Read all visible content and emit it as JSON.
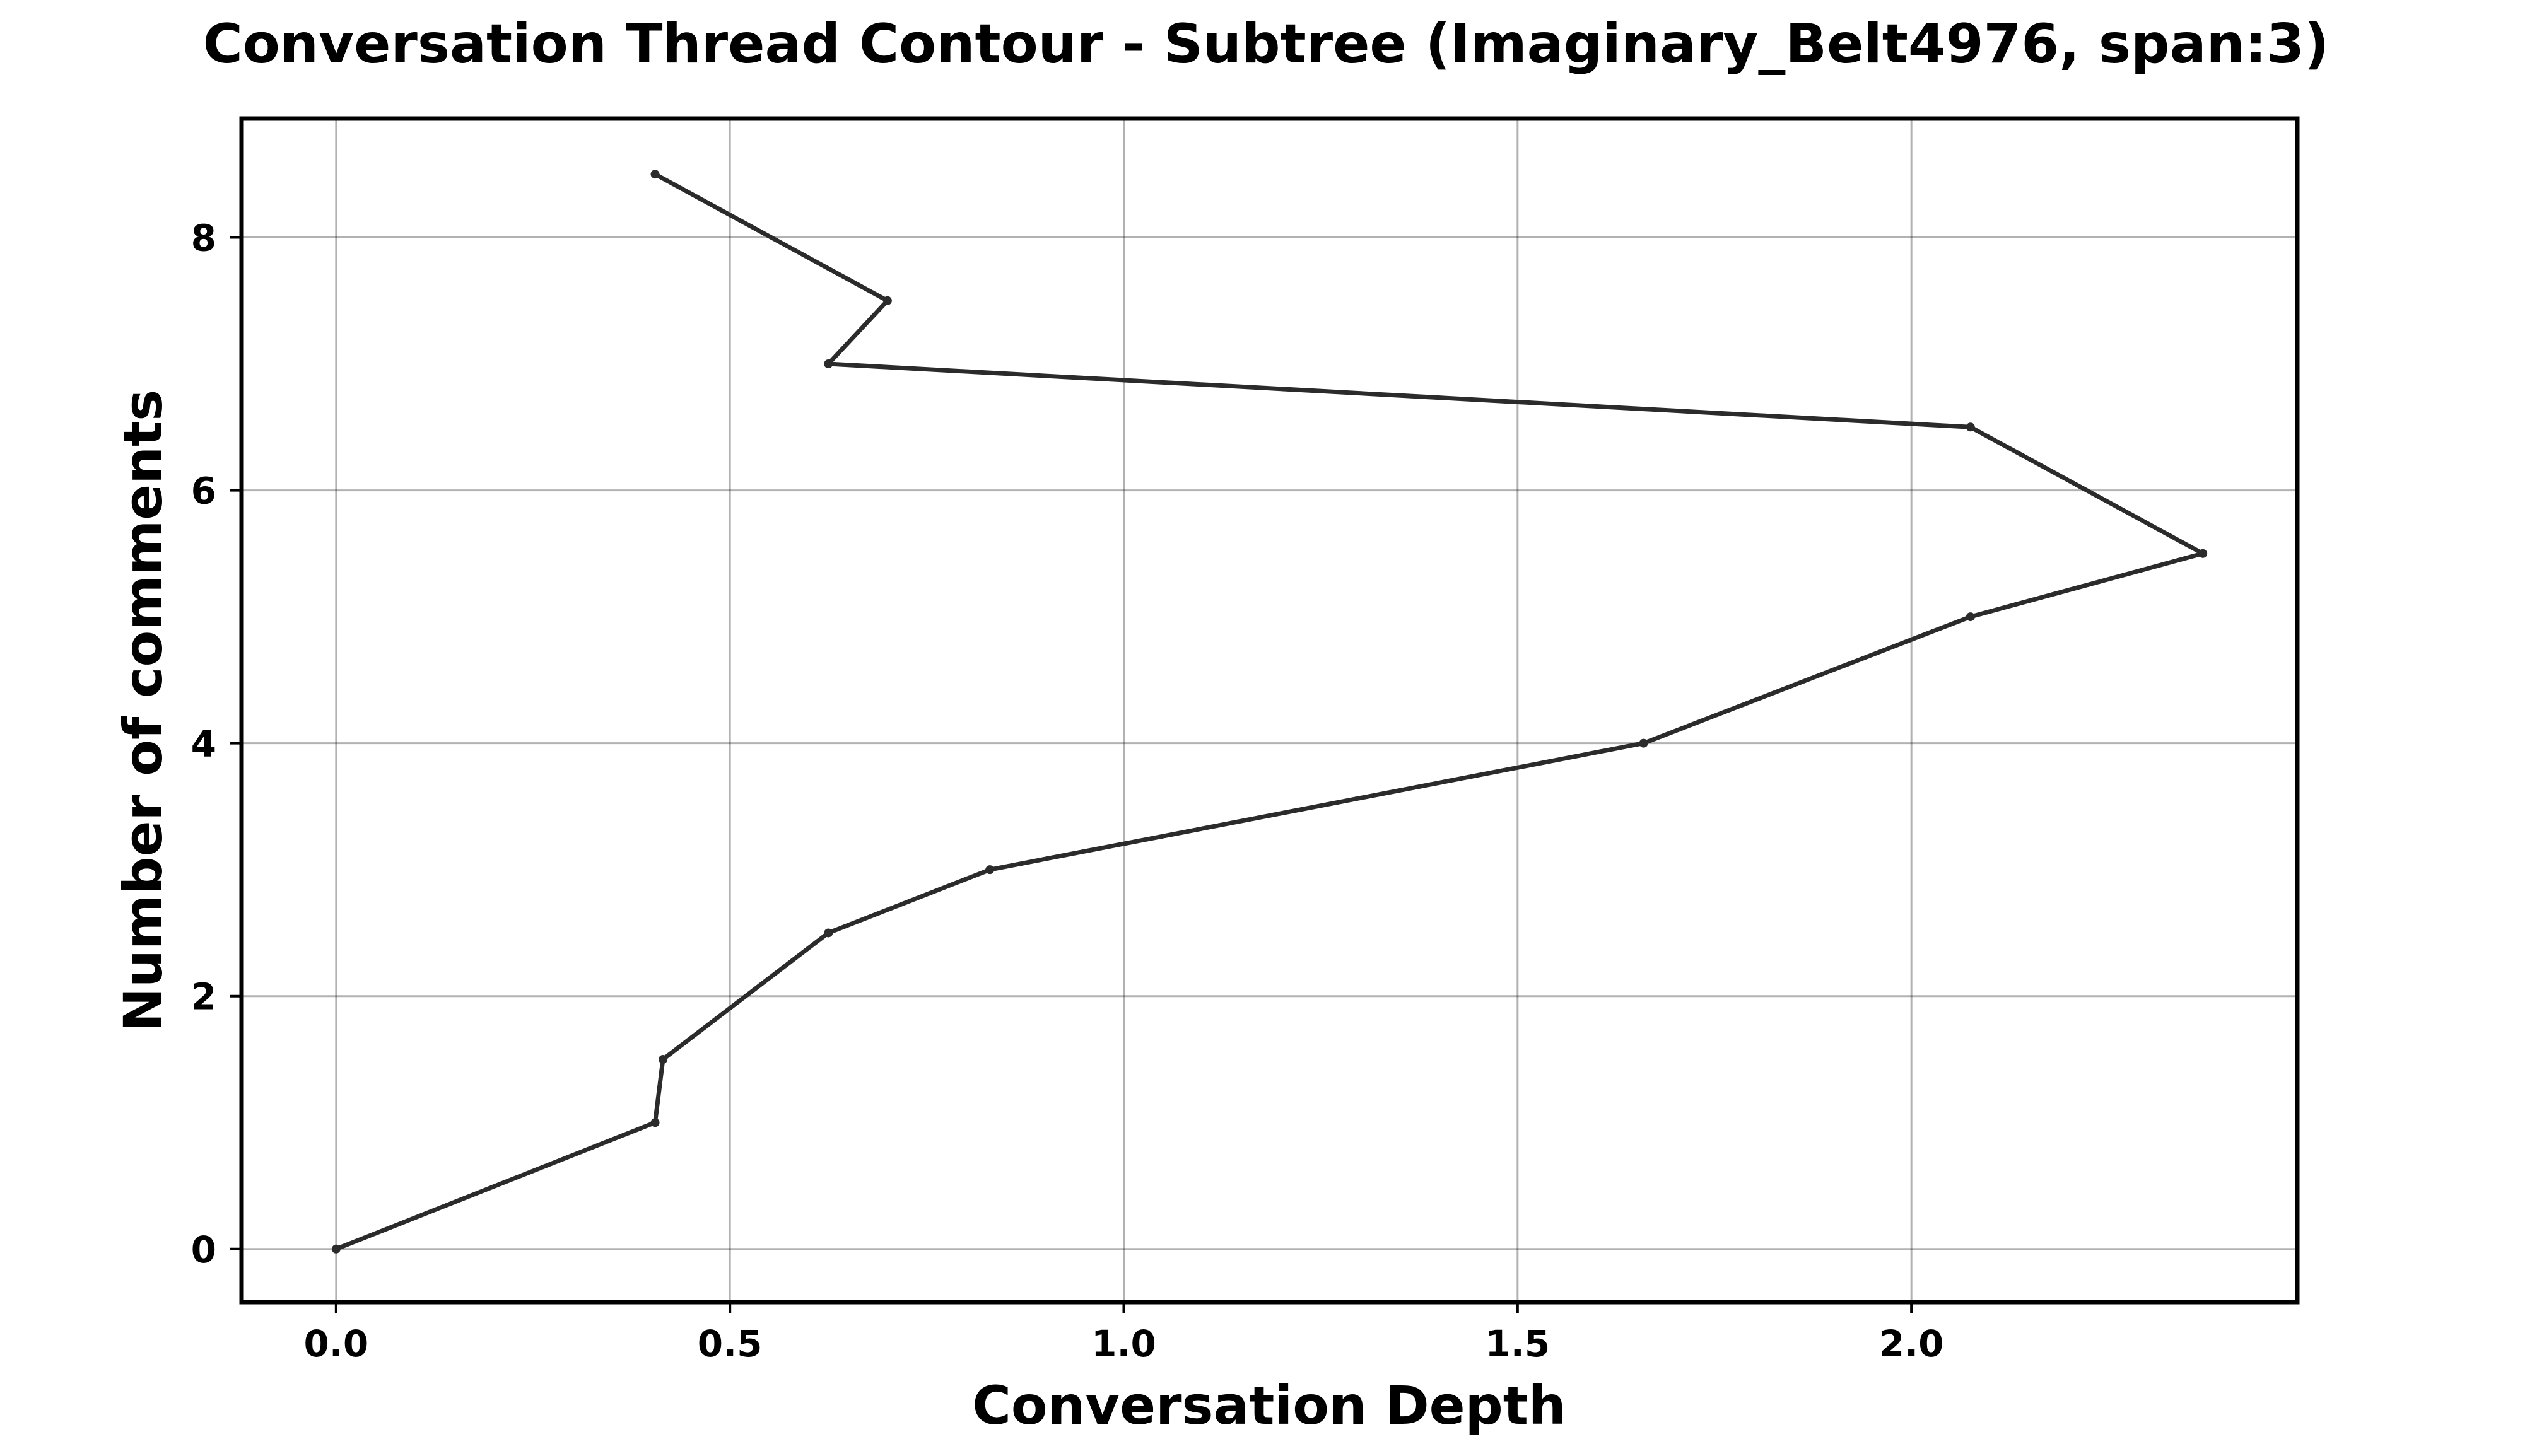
{
  "chart_data": {
    "type": "line",
    "title": "Conversation Thread Contour  - Subtree (Imaginary_Belt4976, span:3)",
    "xlabel": "Conversation Depth",
    "ylabel": "Number of comments",
    "xlim": [
      -0.12,
      2.49
    ],
    "ylim": [
      -0.42,
      8.94
    ],
    "xticks": [
      0.0,
      0.5,
      1.0,
      1.5,
      2.0
    ],
    "xtick_labels": [
      "0.0",
      "0.5",
      "1.0",
      "1.5",
      "2.0"
    ],
    "yticks": [
      0,
      2,
      4,
      6,
      8
    ],
    "ytick_labels": [
      "0",
      "2",
      "4",
      "6",
      "8"
    ],
    "grid": true,
    "legend": "none",
    "series": [
      {
        "color": "#2b2b2b",
        "x": [
          0.0,
          0.405,
          0.415,
          0.625,
          0.83,
          1.66,
          2.075,
          2.37,
          2.075,
          0.625,
          0.7,
          0.405
        ],
        "y": [
          0.0,
          1.0,
          1.5,
          2.5,
          3.0,
          4.0,
          5.0,
          5.5,
          6.5,
          7.0,
          7.5,
          8.5
        ]
      }
    ]
  }
}
